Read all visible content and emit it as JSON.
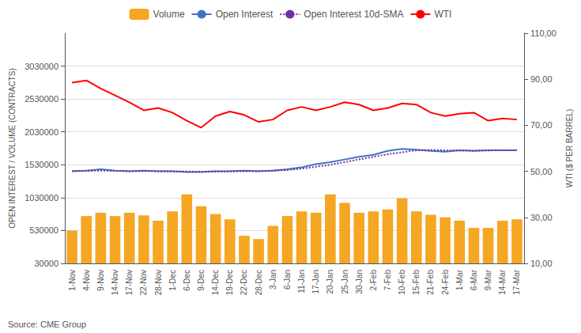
{
  "chart_data": {
    "type": "bar",
    "ylabel": "OPEN INTEREST / VOLUME (CONTRACTS)",
    "y2label": "WTI ($ PER BARREL)",
    "annotations": [
      "Source: CME Group"
    ],
    "categories": [
      "1-Nov",
      "4-Nov",
      "9-Nov",
      "14-Nov",
      "17-Nov",
      "22-Nov",
      "28-Nov",
      "1-Dec",
      "6-Dec",
      "9-Dec",
      "14-Dec",
      "19-Dec",
      "22-Dec",
      "28-Dec",
      "3-Jan",
      "6-Jan",
      "11-Jan",
      "17-Jan",
      "20-Jan",
      "25-Jan",
      "30-Jan",
      "2-Feb",
      "7-Feb",
      "10-Feb",
      "15-Feb",
      "21-Feb",
      "24-Feb",
      "1-Mar",
      "6-Mar",
      "9-Mar",
      "14-Mar",
      "17-Mar"
    ],
    "series": [
      {
        "name": "Volume",
        "type": "bar",
        "color": "#f5a623",
        "values": [
          530000,
          750000,
          800000,
          750000,
          800000,
          760000,
          680000,
          820000,
          1080000,
          900000,
          780000,
          700000,
          450000,
          400000,
          600000,
          750000,
          820000,
          800000,
          1080000,
          950000,
          800000,
          820000,
          850000,
          1020000,
          820000,
          770000,
          730000,
          680000,
          570000,
          570000,
          680000,
          700000
        ]
      },
      {
        "name": "Open Interest",
        "type": "line",
        "color": "#4472c4",
        "line_style": "solid",
        "values": [
          1430000,
          1440000,
          1460000,
          1440000,
          1430000,
          1440000,
          1430000,
          1430000,
          1420000,
          1420000,
          1430000,
          1430000,
          1440000,
          1430000,
          1440000,
          1460000,
          1490000,
          1540000,
          1570000,
          1610000,
          1650000,
          1680000,
          1740000,
          1770000,
          1760000,
          1740000,
          1730000,
          1750000,
          1740000,
          1750000,
          1750000,
          1750000
        ]
      },
      {
        "name": "Open Interest 10d-SMA",
        "type": "line",
        "color": "#7030a0",
        "line_style": "dotted",
        "values": [
          1435000,
          1438000,
          1440000,
          1438000,
          1435000,
          1435000,
          1432000,
          1430000,
          1428000,
          1425000,
          1428000,
          1430000,
          1432000,
          1435000,
          1440000,
          1450000,
          1470000,
          1500000,
          1530000,
          1570000,
          1610000,
          1650000,
          1690000,
          1720000,
          1750000,
          1755000,
          1748000,
          1748000,
          1745000,
          1748000,
          1750000,
          1752000
        ]
      },
      {
        "name": "WTI",
        "type": "line",
        "color": "#ff0000",
        "line_style": "solid",
        "axis": "y2",
        "values": [
          88.5,
          89.5,
          86.0,
          83.0,
          80.0,
          76.5,
          77.5,
          75.5,
          72.0,
          69.0,
          74.0,
          76.0,
          74.5,
          71.5,
          72.5,
          76.5,
          78.0,
          76.5,
          78.0,
          80.0,
          79.0,
          76.5,
          77.5,
          79.5,
          79.0,
          75.5,
          74.0,
          75.0,
          75.5,
          72.0,
          73.0,
          72.5
        ]
      }
    ],
    "ylim": [
      30000,
      3530000
    ],
    "yticks": [
      30000,
      530000,
      1030000,
      1530000,
      2030000,
      2530000,
      3030000
    ],
    "y2lim": [
      10.0,
      110.0
    ],
    "y2ticks": [
      {
        "value": 10.0,
        "label": "10,00"
      },
      {
        "value": 30.0,
        "label": "30,00"
      },
      {
        "value": 50.0,
        "label": "50,00"
      },
      {
        "value": 70.0,
        "label": "70,00"
      },
      {
        "value": 90.0,
        "label": "90,00"
      },
      {
        "value": 110.0,
        "label": "110,00"
      }
    ],
    "grid": true,
    "legend": "top"
  }
}
